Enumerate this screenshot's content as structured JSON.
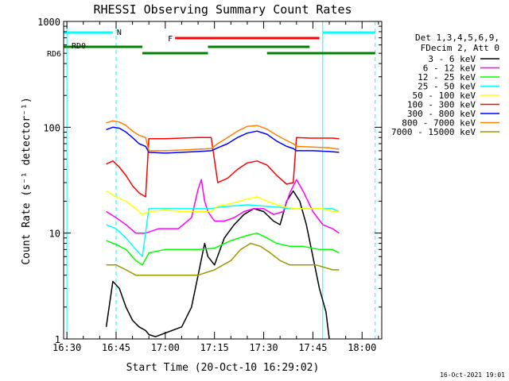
{
  "chart_data": {
    "type": "line",
    "title": "RHESSI Observing Summary Count Rates",
    "xlabel": "Start Time (20-Oct-10 16:29:02)",
    "ylabel": "Count Rate (s⁻¹ detector⁻¹)",
    "x_unit": "time of day (20-Oct-10)",
    "xlim": [
      "16:29",
      "18:06"
    ],
    "ylim": [
      1,
      1000
    ],
    "yscale": "log",
    "x_ticks": [
      "16:30",
      "16:45",
      "17:00",
      "17:15",
      "17:30",
      "17:45",
      "18:00"
    ],
    "y_ticks": [
      "1",
      "10",
      "100",
      "1000"
    ],
    "grid": false,
    "legend_position": "right",
    "legend_header": [
      "Det 1,3,4,5,6,9,",
      "FDecim 2, Att 0"
    ],
    "series": [
      {
        "name": "3 - 6 keV",
        "color": "#000000",
        "points": [
          [
            "16:42",
            1.3
          ],
          [
            "16:44",
            3.5
          ],
          [
            "16:46",
            3
          ],
          [
            "16:48",
            2
          ],
          [
            "16:50",
            1.5
          ],
          [
            "16:52",
            1.3
          ],
          [
            "16:54",
            1.2
          ],
          [
            "16:55",
            1.1
          ],
          [
            "16:57",
            1.05
          ],
          [
            "17:05",
            1.3
          ],
          [
            "17:08",
            2
          ],
          [
            "17:10",
            4
          ],
          [
            "17:12",
            8
          ],
          [
            "17:13",
            6
          ],
          [
            "17:15",
            5
          ],
          [
            "17:18",
            9
          ],
          [
            "17:21",
            12
          ],
          [
            "17:24",
            15
          ],
          [
            "17:27",
            17
          ],
          [
            "17:30",
            16
          ],
          [
            "17:33",
            13
          ],
          [
            "17:35",
            12
          ],
          [
            "17:37",
            20
          ],
          [
            "17:39",
            25
          ],
          [
            "17:41",
            20
          ],
          [
            "17:43",
            12
          ],
          [
            "17:45",
            6
          ],
          [
            "17:47",
            3
          ],
          [
            "17:49",
            1.8
          ],
          [
            "17:50",
            1
          ]
        ]
      },
      {
        "name": "6 - 12 keV",
        "color": "#ff00ff",
        "points": [
          [
            "16:42",
            16
          ],
          [
            "16:45",
            14
          ],
          [
            "16:48",
            12
          ],
          [
            "16:51",
            10
          ],
          [
            "16:54",
            10
          ],
          [
            "16:58",
            11
          ],
          [
            "17:04",
            11
          ],
          [
            "17:08",
            14
          ],
          [
            "17:10",
            26
          ],
          [
            "17:11",
            32
          ],
          [
            "17:12",
            20
          ],
          [
            "17:13",
            16
          ],
          [
            "17:15",
            13
          ],
          [
            "17:18",
            13
          ],
          [
            "17:21",
            14
          ],
          [
            "17:24",
            16
          ],
          [
            "17:27",
            17
          ],
          [
            "17:30",
            17
          ],
          [
            "17:33",
            15
          ],
          [
            "17:36",
            16
          ],
          [
            "17:38",
            24
          ],
          [
            "17:40",
            32
          ],
          [
            "17:42",
            25
          ],
          [
            "17:45",
            16
          ],
          [
            "17:48",
            12
          ],
          [
            "17:51",
            11
          ],
          [
            "17:53",
            10
          ]
        ]
      },
      {
        "name": "12 - 25 keV",
        "color": "#00ff00",
        "points": [
          [
            "16:42",
            8.5
          ],
          [
            "16:45",
            7.8
          ],
          [
            "16:48",
            7
          ],
          [
            "16:51",
            5.5
          ],
          [
            "16:53",
            5
          ],
          [
            "16:55",
            6.5
          ],
          [
            "17:00",
            7
          ],
          [
            "17:05",
            7
          ],
          [
            "17:10",
            7
          ],
          [
            "17:15",
            7.2
          ],
          [
            "17:20",
            8.5
          ],
          [
            "17:25",
            9.5
          ],
          [
            "17:28",
            10
          ],
          [
            "17:31",
            9
          ],
          [
            "17:34",
            8
          ],
          [
            "17:38",
            7.5
          ],
          [
            "17:42",
            7.5
          ],
          [
            "17:47",
            7
          ],
          [
            "17:51",
            7
          ],
          [
            "17:53",
            6.5
          ]
        ]
      },
      {
        "name": "25 - 50 keV",
        "color": "#00ffff",
        "points": [
          [
            "16:42",
            12
          ],
          [
            "16:45",
            11
          ],
          [
            "16:48",
            9
          ],
          [
            "16:51",
            7
          ],
          [
            "16:53",
            6
          ],
          [
            "16:55",
            17
          ],
          [
            "17:00",
            17
          ],
          [
            "17:05",
            17
          ],
          [
            "17:10",
            17
          ],
          [
            "17:14",
            17
          ],
          [
            "17:16",
            17.5
          ],
          [
            "17:20",
            18
          ],
          [
            "17:25",
            18.5
          ],
          [
            "17:30",
            18
          ],
          [
            "17:35",
            17.5
          ],
          [
            "17:38",
            17
          ],
          [
            "17:42",
            17
          ],
          [
            "17:46",
            17
          ],
          [
            "17:48",
            17
          ],
          [
            "17:51",
            17
          ],
          [
            "17:53",
            16
          ]
        ]
      },
      {
        "name": "50 - 100 keV",
        "color": "#ffff00",
        "points": [
          [
            "16:42",
            25
          ],
          [
            "16:45",
            22
          ],
          [
            "16:48",
            20
          ],
          [
            "16:51",
            17
          ],
          [
            "16:53",
            15
          ],
          [
            "16:55",
            16
          ],
          [
            "17:00",
            16.5
          ],
          [
            "17:05",
            16
          ],
          [
            "17:10",
            16
          ],
          [
            "17:14",
            16
          ],
          [
            "17:16",
            18
          ],
          [
            "17:20",
            19
          ],
          [
            "17:25",
            21
          ],
          [
            "17:28",
            22
          ],
          [
            "17:31",
            20
          ],
          [
            "17:34",
            18.5
          ],
          [
            "17:37",
            17.5
          ],
          [
            "17:40",
            17
          ],
          [
            "17:45",
            17
          ],
          [
            "17:48",
            17
          ],
          [
            "17:51",
            16
          ],
          [
            "17:53",
            16
          ]
        ]
      },
      {
        "name": "100 - 300 keV",
        "color": "#ff0000",
        "points": [
          [
            "16:42",
            45
          ],
          [
            "16:44",
            48
          ],
          [
            "16:46",
            42
          ],
          [
            "16:48",
            35
          ],
          [
            "16:50",
            28
          ],
          [
            "16:52",
            24
          ],
          [
            "16:54",
            22
          ],
          [
            "16:55",
            78
          ],
          [
            "17:00",
            78
          ],
          [
            "17:05",
            79
          ],
          [
            "17:10",
            80
          ],
          [
            "17:14",
            80
          ],
          [
            "17:16",
            30
          ],
          [
            "17:19",
            33
          ],
          [
            "17:22",
            40
          ],
          [
            "17:25",
            46
          ],
          [
            "17:28",
            48
          ],
          [
            "17:31",
            44
          ],
          [
            "17:34",
            35
          ],
          [
            "17:37",
            29
          ],
          [
            "17:39",
            30
          ],
          [
            "17:40",
            80
          ],
          [
            "17:44",
            79
          ],
          [
            "17:48",
            79
          ],
          [
            "17:51",
            79
          ],
          [
            "17:53",
            78
          ]
        ]
      },
      {
        "name": "300 - 800 keV",
        "color": "#0000ff",
        "points": [
          [
            "16:42",
            95
          ],
          [
            "16:44",
            100
          ],
          [
            "16:46",
            98
          ],
          [
            "16:48",
            90
          ],
          [
            "16:50",
            80
          ],
          [
            "16:52",
            70
          ],
          [
            "16:54",
            66
          ],
          [
            "16:55",
            58
          ],
          [
            "17:00",
            57
          ],
          [
            "17:05",
            58
          ],
          [
            "17:10",
            59
          ],
          [
            "17:14",
            60
          ],
          [
            "17:16",
            64
          ],
          [
            "17:19",
            70
          ],
          [
            "17:22",
            80
          ],
          [
            "17:25",
            88
          ],
          [
            "17:28",
            92
          ],
          [
            "17:31",
            86
          ],
          [
            "17:34",
            74
          ],
          [
            "17:37",
            66
          ],
          [
            "17:39",
            63
          ],
          [
            "17:40",
            60
          ],
          [
            "17:45",
            60
          ],
          [
            "17:50",
            59
          ],
          [
            "17:53",
            58
          ]
        ]
      },
      {
        "name": "800 - 7000 keV",
        "color": "#ff8000",
        "points": [
          [
            "16:42",
            110
          ],
          [
            "16:44",
            115
          ],
          [
            "16:46",
            112
          ],
          [
            "16:48",
            104
          ],
          [
            "16:50",
            92
          ],
          [
            "16:52",
            84
          ],
          [
            "16:54",
            80
          ],
          [
            "16:55",
            60
          ],
          [
            "17:00",
            60
          ],
          [
            "17:05",
            61
          ],
          [
            "17:10",
            62
          ],
          [
            "17:14",
            63
          ],
          [
            "17:16",
            70
          ],
          [
            "17:19",
            80
          ],
          [
            "17:22",
            92
          ],
          [
            "17:25",
            102
          ],
          [
            "17:28",
            104
          ],
          [
            "17:31",
            96
          ],
          [
            "17:34",
            84
          ],
          [
            "17:37",
            75
          ],
          [
            "17:39",
            70
          ],
          [
            "17:40",
            66
          ],
          [
            "17:45",
            65
          ],
          [
            "17:50",
            64
          ],
          [
            "17:53",
            62
          ]
        ]
      },
      {
        "name": "7000 - 15000 keV",
        "color": "#999900",
        "points": [
          [
            "16:42",
            5
          ],
          [
            "16:45",
            5
          ],
          [
            "16:48",
            4.5
          ],
          [
            "16:51",
            4
          ],
          [
            "16:53",
            4
          ],
          [
            "16:55",
            4
          ],
          [
            "17:00",
            4
          ],
          [
            "17:05",
            4
          ],
          [
            "17:10",
            4
          ],
          [
            "17:15",
            4.5
          ],
          [
            "17:20",
            5.5
          ],
          [
            "17:23",
            7
          ],
          [
            "17:26",
            8
          ],
          [
            "17:29",
            7.5
          ],
          [
            "17:32",
            6.5
          ],
          [
            "17:35",
            5.5
          ],
          [
            "17:38",
            5
          ],
          [
            "17:42",
            5
          ],
          [
            "17:46",
            5
          ],
          [
            "17:51",
            4.5
          ],
          [
            "17:53",
            4.5
          ]
        ]
      }
    ],
    "flag_bars": [
      {
        "label": "N",
        "color": "#00ffff",
        "segments": [
          [
            "16:29",
            "16:44"
          ],
          [
            "17:48",
            "18:04"
          ]
        ]
      },
      {
        "label": "F",
        "color": "#ff0000",
        "segments": [
          [
            "17:03",
            "17:47"
          ]
        ]
      },
      {
        "label": "RD0",
        "color": "#008000",
        "segments": [
          [
            "16:29",
            "16:53"
          ],
          [
            "17:13",
            "17:44"
          ]
        ]
      },
      {
        "label": "RD6",
        "color": "#008000",
        "segments": [
          [
            "16:53",
            "17:13"
          ],
          [
            "17:31",
            "18:04"
          ]
        ]
      }
    ],
    "vertical_lines": [
      {
        "time": "16:30",
        "color": "#00ffff",
        "style": "solid"
      },
      {
        "time": "16:45",
        "color": "#00ffff",
        "style": "dashed"
      },
      {
        "time": "17:48",
        "color": "#00ffff",
        "style": "solid"
      },
      {
        "time": "18:04",
        "color": "#00ffff",
        "style": "dashed"
      }
    ]
  },
  "footer": {
    "timestamp": "16-Oct-2021 19:01"
  }
}
